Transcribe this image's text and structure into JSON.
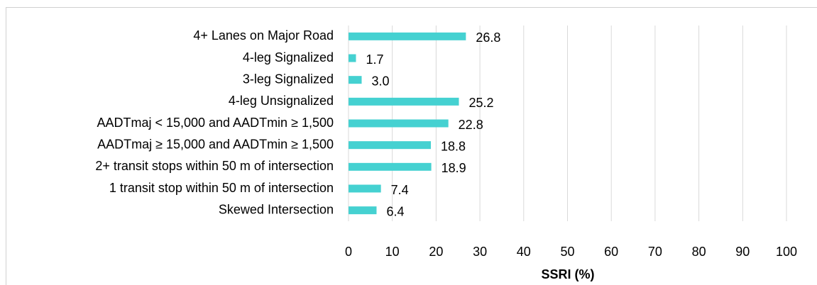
{
  "chart_data": {
    "type": "barh",
    "x_label": "SSRI (%)",
    "categories": [
      "4+ Lanes on Major Road",
      "4-leg Signalized",
      "3-leg Signalized",
      "4-leg Unsignalized",
      "AADTmaj < 15,000 and AADTmin ≥ 1,500",
      "AADTmaj ≥ 15,000 and AADTmin ≥ 1,500",
      "2+ transit stops within 50 m of intersection",
      "1 transit stop within 50 m of intersection",
      "Skewed Intersection"
    ],
    "values": [
      26.8,
      1.7,
      3.0,
      25.2,
      22.8,
      18.8,
      18.9,
      7.4,
      6.4
    ],
    "value_labels": [
      "26.8",
      "1.7",
      "3.0",
      "25.2",
      "22.8",
      "18.8",
      "18.9",
      "7.4",
      "6.4"
    ],
    "color": "#45d1d1",
    "xlim": [
      0,
      100
    ],
    "xticks": [
      0,
      10,
      20,
      30,
      40,
      50,
      60,
      70,
      80,
      90,
      100
    ],
    "grid": true
  }
}
